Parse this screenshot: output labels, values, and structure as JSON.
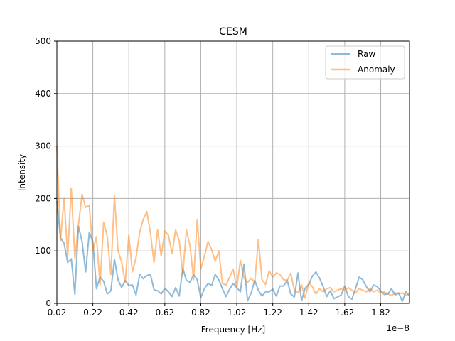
{
  "chart_data": {
    "type": "line",
    "title": "CESM",
    "xlabel": "Frequency [Hz]",
    "ylabel": "Intensity",
    "x_offset_label": "1e−8",
    "xlim": [
      0.02,
      1.98
    ],
    "ylim": [
      0,
      500
    ],
    "x_ticks": [
      "0.02",
      "0.22",
      "0.42",
      "0.62",
      "0.82",
      "1.02",
      "1.22",
      "1.42",
      "1.62",
      "1.82"
    ],
    "x_tick_values": [
      0.02,
      0.22,
      0.42,
      0.62,
      0.82,
      1.02,
      1.22,
      1.42,
      1.62,
      1.82
    ],
    "y_ticks": [
      "0",
      "100",
      "200",
      "300",
      "400",
      "500"
    ],
    "y_tick_values": [
      0,
      100,
      200,
      300,
      400,
      500
    ],
    "grid": true,
    "legend_position": "top-right",
    "x": [
      0.02,
      0.04,
      0.06,
      0.08,
      0.1,
      0.12,
      0.14,
      0.16,
      0.18,
      0.2,
      0.22,
      0.24,
      0.26,
      0.28,
      0.3,
      0.32,
      0.34,
      0.36,
      0.38,
      0.4,
      0.42,
      0.44,
      0.46,
      0.48,
      0.5,
      0.52,
      0.54,
      0.56,
      0.58,
      0.6,
      0.62,
      0.64,
      0.66,
      0.68,
      0.7,
      0.72,
      0.74,
      0.76,
      0.78,
      0.8,
      0.82,
      0.84,
      0.86,
      0.88,
      0.9,
      0.92,
      0.94,
      0.96,
      0.98,
      1.0,
      1.02,
      1.04,
      1.06,
      1.08,
      1.1,
      1.12,
      1.14,
      1.16,
      1.18,
      1.2,
      1.22,
      1.24,
      1.26,
      1.28,
      1.3,
      1.32,
      1.34,
      1.36,
      1.38,
      1.4,
      1.42,
      1.44,
      1.46,
      1.48,
      1.5,
      1.52,
      1.54,
      1.56,
      1.58,
      1.6,
      1.62,
      1.64,
      1.66,
      1.68,
      1.7,
      1.72,
      1.74,
      1.76,
      1.78,
      1.8,
      1.82,
      1.84,
      1.86,
      1.88,
      1.9,
      1.92,
      1.94,
      1.96,
      1.98
    ],
    "series": [
      {
        "name": "Raw",
        "color": "#1f77b4",
        "values": [
          195,
          125,
          115,
          78,
          85,
          17,
          147,
          118,
          60,
          135,
          118,
          28,
          50,
          42,
          18,
          24,
          84,
          45,
          30,
          44,
          34,
          35,
          16,
          55,
          47,
          53,
          55,
          26,
          24,
          18,
          29,
          22,
          13,
          30,
          14,
          67,
          44,
          40,
          55,
          45,
          11,
          28,
          38,
          34,
          55,
          45,
          28,
          13,
          27,
          38,
          30,
          22,
          75,
          5,
          20,
          44,
          25,
          14,
          22,
          22,
          27,
          14,
          33,
          33,
          44,
          18,
          12,
          58,
          5,
          29,
          36,
          52,
          60,
          48,
          32,
          13,
          24,
          9,
          12,
          16,
          33,
          13,
          8,
          28,
          50,
          45,
          32,
          22,
          35,
          32,
          24,
          17,
          18,
          28,
          16,
          20,
          4,
          22,
          14
        ]
      },
      {
        "name": "Anomaly",
        "color": "#ff7f0e",
        "values": [
          300,
          120,
          200,
          90,
          220,
          85,
          150,
          208,
          183,
          187,
          100,
          127,
          35,
          155,
          128,
          55,
          205,
          100,
          79,
          40,
          130,
          60,
          87,
          135,
          160,
          175,
          135,
          78,
          140,
          90,
          138,
          130,
          95,
          140,
          120,
          56,
          140,
          110,
          45,
          160,
          65,
          90,
          118,
          103,
          80,
          100,
          38,
          35,
          50,
          65,
          30,
          82,
          48,
          40,
          48,
          40,
          122,
          45,
          36,
          62,
          50,
          58,
          55,
          45,
          44,
          57,
          25,
          20,
          35,
          10,
          40,
          32,
          18,
          28,
          22,
          28,
          30,
          22,
          25,
          28,
          24,
          30,
          25,
          20,
          28,
          25,
          22,
          28,
          22,
          25,
          20,
          22,
          18,
          15,
          20,
          18,
          20,
          15,
          20
        ]
      }
    ]
  }
}
